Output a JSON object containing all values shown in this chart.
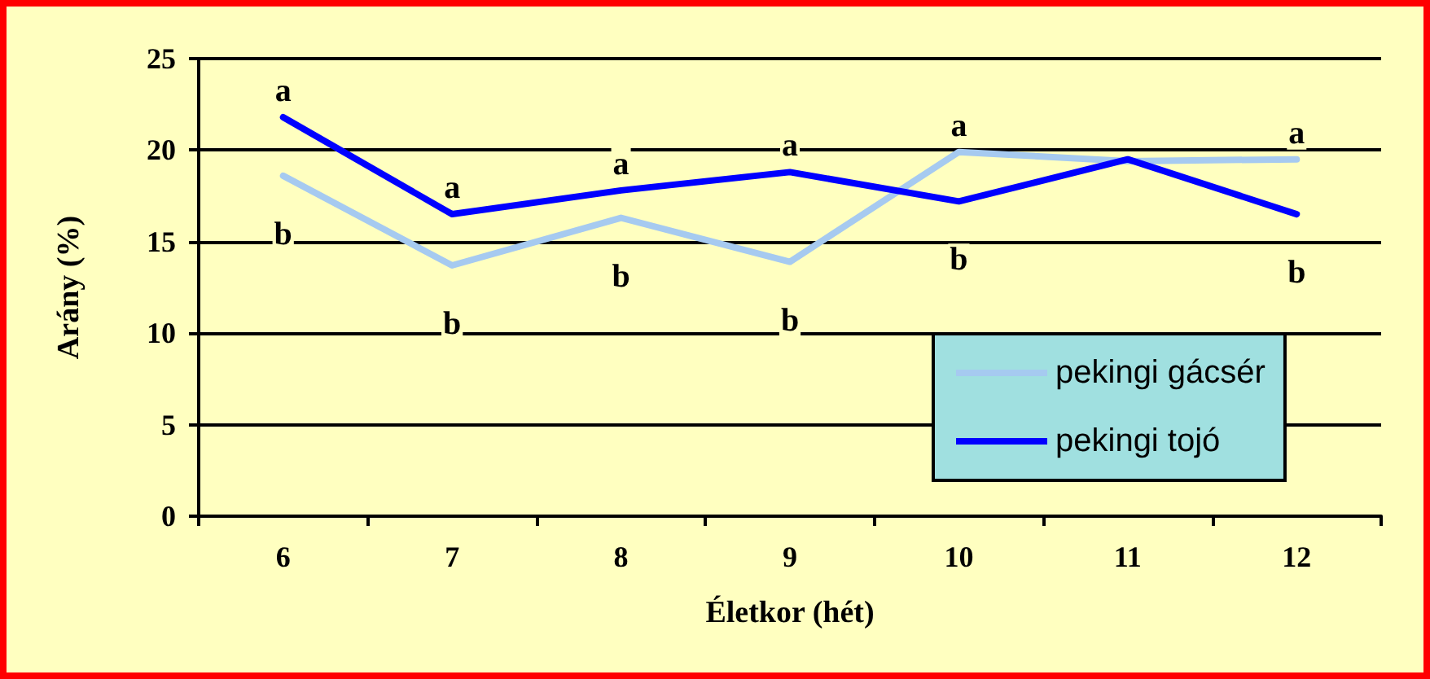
{
  "chart_data": {
    "type": "line",
    "xlabel": "Életkor (hét)",
    "ylabel": "Arány (%)",
    "categories": [
      "6",
      "7",
      "8",
      "9",
      "10",
      "11",
      "12"
    ],
    "series": [
      {
        "name": "pekingi gácsér",
        "color": "#a6caf0",
        "values": [
          18.6,
          13.7,
          16.3,
          13.9,
          19.9,
          19.4,
          19.5
        ],
        "value_labels": [
          "b",
          "b",
          "b",
          "b",
          "a",
          null,
          "a"
        ]
      },
      {
        "name": "pekingi tojó",
        "color": "#0000ff",
        "values": [
          21.8,
          16.5,
          17.8,
          18.8,
          17.2,
          19.5,
          16.5
        ],
        "value_labels": [
          "a",
          "a",
          "a",
          "a",
          "b",
          null,
          "b"
        ]
      }
    ],
    "ylim": [
      0,
      25
    ],
    "yticks": [
      0,
      5,
      10,
      15,
      20,
      25
    ],
    "grid": "y",
    "legend": "bottom right",
    "marker": "none",
    "line_style": "solid"
  }
}
